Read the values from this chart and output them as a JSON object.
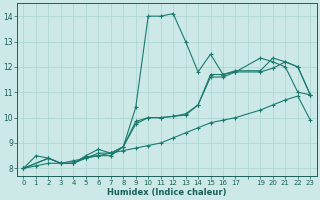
{
  "xlabel": "Humidex (Indice chaleur)",
  "xlim": [
    -0.5,
    23.5
  ],
  "ylim": [
    7.7,
    14.5
  ],
  "yticks": [
    8,
    9,
    10,
    11,
    12,
    13,
    14
  ],
  "xticks": [
    0,
    1,
    2,
    3,
    4,
    5,
    6,
    7,
    8,
    9,
    10,
    11,
    12,
    13,
    14,
    15,
    16,
    17,
    18,
    19,
    20,
    21,
    22,
    23
  ],
  "xtick_labels": [
    "0",
    "1",
    "2",
    "3",
    "4",
    "5",
    "6",
    "7",
    "8",
    "9",
    "10",
    "11",
    "12",
    "13",
    "14",
    "15",
    "16",
    "17",
    "",
    "19",
    "20",
    "21",
    "22",
    "23"
  ],
  "bg_color": "#cce9e7",
  "grid_color": "#aad4d0",
  "line_color1": "#1a7a6e",
  "line_color2": "#1a7a6e",
  "figsize": [
    3.2,
    2.0
  ],
  "dpi": 100,
  "line1_x": [
    0,
    1,
    2,
    3,
    4,
    5,
    6,
    7,
    8,
    9,
    10,
    11,
    12,
    13,
    14,
    15,
    16,
    17,
    19,
    20,
    21,
    22,
    23
  ],
  "line1_y": [
    8.0,
    8.5,
    8.4,
    8.2,
    8.2,
    8.45,
    8.5,
    8.5,
    8.85,
    10.4,
    14.0,
    14.0,
    14.1,
    13.0,
    11.8,
    12.5,
    11.7,
    11.8,
    12.35,
    12.2,
    12.0,
    11.0,
    10.9
  ],
  "line2_x": [
    0,
    2,
    3,
    4,
    5,
    6,
    7,
    8,
    9,
    10,
    11,
    12,
    13,
    14,
    15,
    16,
    17,
    19,
    20,
    21,
    22,
    23
  ],
  "line2_y": [
    8.0,
    8.4,
    8.2,
    8.2,
    8.4,
    8.6,
    8.6,
    8.85,
    9.85,
    10.0,
    10.0,
    10.05,
    10.1,
    10.5,
    11.7,
    11.7,
    11.85,
    11.85,
    12.35,
    12.2,
    12.0,
    10.9
  ],
  "line3_x": [
    0,
    2,
    3,
    4,
    5,
    6,
    7,
    8,
    9,
    10,
    11,
    12,
    13,
    14,
    15,
    16,
    17,
    19,
    20,
    21,
    22,
    23
  ],
  "line3_y": [
    8.0,
    8.4,
    8.2,
    8.2,
    8.5,
    8.75,
    8.6,
    8.85,
    9.75,
    10.0,
    10.0,
    10.05,
    10.15,
    10.5,
    11.6,
    11.6,
    11.8,
    11.8,
    11.95,
    12.2,
    12.0,
    10.9
  ],
  "line4_x": [
    0,
    1,
    2,
    3,
    4,
    5,
    6,
    7,
    8,
    9,
    10,
    11,
    12,
    13,
    14,
    15,
    16,
    17,
    19,
    20,
    21,
    22,
    23
  ],
  "line4_y": [
    8.0,
    8.1,
    8.2,
    8.2,
    8.3,
    8.4,
    8.5,
    8.6,
    8.7,
    8.8,
    8.9,
    9.0,
    9.2,
    9.4,
    9.6,
    9.8,
    9.9,
    10.0,
    10.3,
    10.5,
    10.7,
    10.85,
    9.9
  ]
}
